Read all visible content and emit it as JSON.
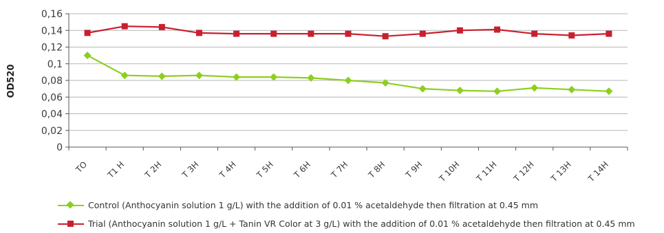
{
  "chart_data": {
    "type": "line",
    "title": "",
    "xlabel": "",
    "ylabel": "OD520",
    "ylim": [
      0,
      0.16
    ],
    "y_ticks": [
      "0",
      "0,02",
      "0,04",
      "0,06",
      "0,08",
      "0,1",
      "0,12",
      "0,14",
      "0,16"
    ],
    "grid": true,
    "legend_position": "bottom",
    "categories": [
      "TO",
      "T1 H",
      "T 2H",
      "T 3H",
      "T 4H",
      "T 5H",
      "T 6H",
      "T 7H",
      "T 8H",
      "T 9H",
      "T 10H",
      "T 11H",
      "T 12H",
      "T 13H",
      "T 14H"
    ],
    "series": [
      {
        "name": "Control (Anthocyanin solution 1 g/L) with the addition of 0.01 % acetaldehyde then filtration at 0.45 mm",
        "color": "#8ccf1f",
        "marker": "diamond",
        "values": [
          0.11,
          0.086,
          0.085,
          0.086,
          0.084,
          0.084,
          0.083,
          0.08,
          0.077,
          0.07,
          0.068,
          0.067,
          0.071,
          0.069,
          0.067
        ]
      },
      {
        "name": "Trial (Anthocyanin solution 1 g/L + Tanin VR Color at 3 g/L) with the addition of 0.01 % acetaldehyde then filtration at 0.45 mm",
        "color": "#c8202e",
        "marker": "square",
        "values": [
          0.137,
          0.145,
          0.144,
          0.137,
          0.136,
          0.136,
          0.136,
          0.136,
          0.133,
          0.136,
          0.14,
          0.141,
          0.136,
          0.134,
          0.136
        ]
      }
    ]
  }
}
